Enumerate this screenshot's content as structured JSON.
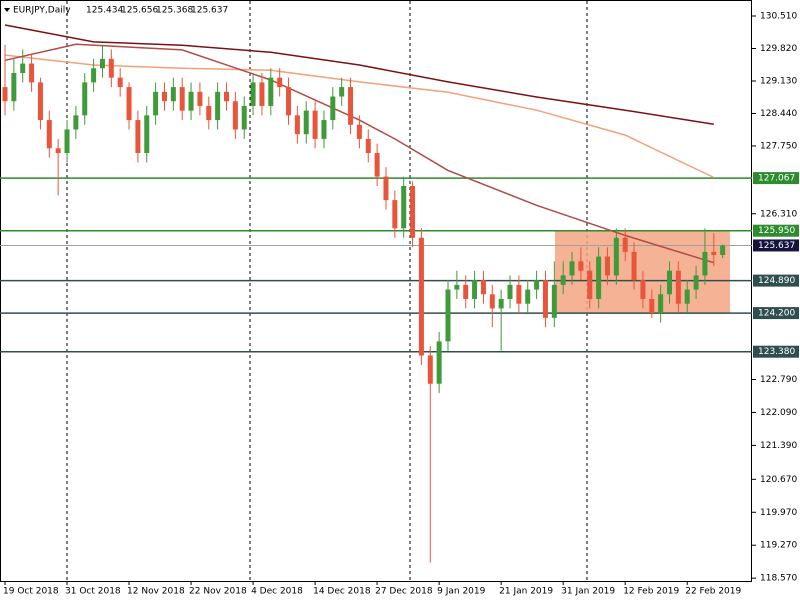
{
  "chart_data": {
    "type": "candlestick",
    "title": "EURJPY,Daily",
    "up_color": "#3f9a3a",
    "down_color": "#e8553a",
    "categories": [
      "19 Oct 2018",
      null,
      null,
      null,
      null,
      null,
      null,
      "31 Oct 2018",
      null,
      null,
      null,
      null,
      null,
      null,
      "12 Nov 2018",
      null,
      null,
      null,
      null,
      null,
      null,
      "22 Nov 2018",
      null,
      null,
      null,
      null,
      null,
      null,
      "4 Dec 2018",
      null,
      null,
      null,
      null,
      null,
      null,
      "14 Dec 2018",
      null,
      null,
      null,
      null,
      null,
      null,
      "27 Dec 2018",
      null,
      null,
      null,
      null,
      null,
      null,
      "9 Jan 2019",
      null,
      null,
      null,
      null,
      null,
      null,
      "21 Jan 2019",
      null,
      null,
      null,
      null,
      null,
      null,
      "31 Jan 2019",
      null,
      null,
      null,
      null,
      null,
      null,
      "12 Feb 2019",
      null,
      null,
      null,
      null,
      null,
      null,
      "22 Feb 2019",
      null,
      null,
      null,
      null
    ],
    "open": [
      129.0,
      128.7,
      129.3,
      129.5,
      129.1,
      128.3,
      127.7,
      127.6,
      128.1,
      128.4,
      129.1,
      129.4,
      129.6,
      129.2,
      129.0,
      128.3,
      127.6,
      128.4,
      128.9,
      128.7,
      129.0,
      128.5,
      128.9,
      128.6,
      128.3,
      128.9,
      128.7,
      128.1,
      128.6,
      129.1,
      128.6,
      129.2,
      129.0,
      128.4,
      128.0,
      128.5,
      127.9,
      128.3,
      128.8,
      129.0,
      128.2,
      127.9,
      127.6,
      127.1,
      126.6,
      126.0,
      126.9,
      125.8,
      123.3,
      122.7,
      123.6,
      124.7,
      124.8,
      124.5,
      124.9,
      124.6,
      124.3,
      124.5,
      124.8,
      124.4,
      124.7,
      124.9,
      124.1,
      124.8,
      125.0,
      125.3,
      125.1,
      124.5,
      125.4,
      125.0,
      125.8,
      125.5,
      124.9,
      124.5,
      124.2,
      124.6,
      125.1,
      124.4,
      124.7,
      125.0,
      125.5,
      125.434
    ],
    "high": [
      129.9,
      129.6,
      129.8,
      129.7,
      129.2,
      128.5,
      127.9,
      128.3,
      128.6,
      129.3,
      129.6,
      129.9,
      129.8,
      129.4,
      129.1,
      128.5,
      128.6,
      129.1,
      129.1,
      129.2,
      129.2,
      129.1,
      129.1,
      128.8,
      129.1,
      129.1,
      128.9,
      128.8,
      129.3,
      129.3,
      129.4,
      129.4,
      129.2,
      128.6,
      128.7,
      128.7,
      128.5,
      129.0,
      129.2,
      129.2,
      128.4,
      128.1,
      127.8,
      127.3,
      126.8,
      127.1,
      127.0,
      126.0,
      123.5,
      123.8,
      124.9,
      125.1,
      125.0,
      125.1,
      125.1,
      124.8,
      124.7,
      125.0,
      125.0,
      124.9,
      125.1,
      125.1,
      125.3,
      125.3,
      125.5,
      125.6,
      125.3,
      125.6,
      125.6,
      126.0,
      126.0,
      125.7,
      125.1,
      124.7,
      124.8,
      125.3,
      125.3,
      124.9,
      125.2,
      126.0,
      125.9,
      125.656
    ],
    "low": [
      128.4,
      128.5,
      129.1,
      128.9,
      128.1,
      127.5,
      126.7,
      127.4,
      127.9,
      128.2,
      128.9,
      129.2,
      129.0,
      128.8,
      128.1,
      127.4,
      127.4,
      128.2,
      128.5,
      128.5,
      128.3,
      128.3,
      128.4,
      128.1,
      128.1,
      128.5,
      127.9,
      127.9,
      128.4,
      128.4,
      128.4,
      128.8,
      128.2,
      127.8,
      127.8,
      127.7,
      127.7,
      128.1,
      128.6,
      128.0,
      127.7,
      127.4,
      126.9,
      126.4,
      125.8,
      125.8,
      125.6,
      123.1,
      118.9,
      122.5,
      123.4,
      124.5,
      124.3,
      124.3,
      124.4,
      123.9,
      123.4,
      124.3,
      124.2,
      124.2,
      124.5,
      123.9,
      123.9,
      124.6,
      124.8,
      124.9,
      124.3,
      124.3,
      124.8,
      124.8,
      125.3,
      124.7,
      124.3,
      124.1,
      124.0,
      124.4,
      124.2,
      124.2,
      124.5,
      124.8,
      125.2,
      125.368
    ],
    "close": [
      128.7,
      129.3,
      129.5,
      129.1,
      128.3,
      127.7,
      127.6,
      128.1,
      128.4,
      129.1,
      129.4,
      129.6,
      129.2,
      129.0,
      128.3,
      127.6,
      128.4,
      128.9,
      128.7,
      129.0,
      128.5,
      128.9,
      128.6,
      128.3,
      128.9,
      128.7,
      128.1,
      128.6,
      129.1,
      128.6,
      129.2,
      129.0,
      128.4,
      128.0,
      128.5,
      127.9,
      128.3,
      128.8,
      129.0,
      128.2,
      127.9,
      127.6,
      127.1,
      126.6,
      126.0,
      126.9,
      125.8,
      123.3,
      122.7,
      123.6,
      124.7,
      124.8,
      124.5,
      124.9,
      124.6,
      124.3,
      124.5,
      124.8,
      124.4,
      124.7,
      124.9,
      124.1,
      124.8,
      125.0,
      125.3,
      125.1,
      124.5,
      125.4,
      125.0,
      125.8,
      125.5,
      124.9,
      124.5,
      124.2,
      124.6,
      125.1,
      124.4,
      124.7,
      125.0,
      125.5,
      125.434,
      125.637
    ],
    "lines": [
      {
        "color": "#7a1212",
        "x": [
          0,
          10,
          20,
          30,
          40,
          50,
          60,
          70,
          80
        ],
        "values": [
          130.32,
          129.96,
          129.89,
          129.74,
          129.47,
          129.11,
          128.79,
          128.51,
          128.21
        ]
      },
      {
        "color": "#f4a07a",
        "x": [
          0,
          10,
          20,
          30,
          40,
          50,
          60,
          70,
          80
        ],
        "values": [
          129.68,
          129.47,
          129.4,
          129.36,
          129.11,
          128.89,
          128.51,
          127.98,
          127.08
        ]
      },
      {
        "color": "#b24a4a",
        "x": [
          0,
          8,
          20,
          30,
          40,
          44,
          50,
          60,
          70,
          80
        ],
        "values": [
          129.57,
          129.91,
          129.79,
          129.15,
          128.3,
          127.9,
          127.23,
          126.49,
          125.85,
          125.27
        ]
      }
    ],
    "levels": [
      {
        "value": 127.067,
        "color": "#2e8b2e"
      },
      {
        "value": 125.95,
        "label": "125.950",
        "color": "#2e8b2e"
      },
      {
        "value": 124.89,
        "label": "124.890",
        "color": "#2f4f4f"
      },
      {
        "value": 124.2,
        "label": "124.200",
        "color": "#2f4f4f"
      },
      {
        "value": 123.38,
        "label": "123.380",
        "color": "#2f4f4f"
      }
    ],
    "zone_color": "#f4a582",
    "ylim": [
      118.51,
      130.85
    ],
    "yticks": [
      {
        "value": 130.51,
        "label": "130.510"
      },
      {
        "value": 129.82,
        "label": "129.820"
      },
      {
        "value": 129.13,
        "label": "129.130"
      },
      {
        "value": 128.44,
        "label": "128.440"
      },
      {
        "value": 127.75,
        "label": "127.750"
      },
      {
        "value": 126.31,
        "label": "126.310"
      },
      {
        "value": 122.79,
        "label": "122.790"
      },
      {
        "value": 122.09,
        "label": "122.090"
      },
      {
        "value": 121.39,
        "label": "121.390"
      },
      {
        "value": 120.67,
        "label": "120.670"
      },
      {
        "value": 119.97,
        "label": "119.970"
      },
      {
        "value": 119.27,
        "label": "119.270"
      },
      {
        "value": 118.57,
        "label": "118.570"
      }
    ]
  }
}
